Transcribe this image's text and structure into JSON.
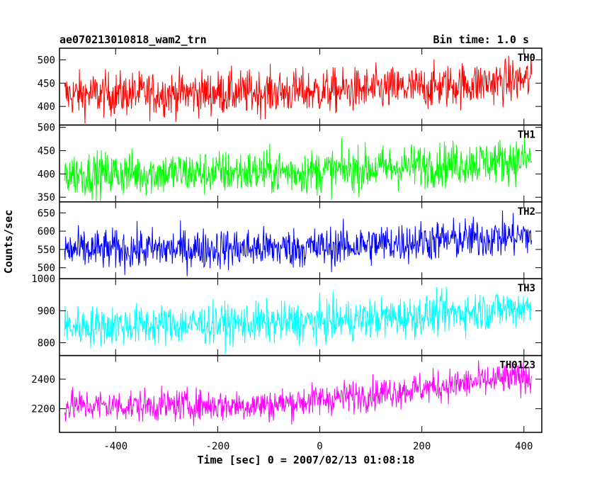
{
  "header": {
    "left": "ae070213010818_wam2_trn",
    "right": "Bin time: 1.0 s"
  },
  "chart_data": {
    "type": "line",
    "xlabel": "Time [sec] 0 = 2007/02/13 01:08:18",
    "ylabel": "Counts/sec",
    "xlim": [
      -510,
      435
    ],
    "x_ticks": [
      -400,
      -200,
      0,
      200,
      400
    ],
    "x_start": -500,
    "x_end": 415,
    "bin_time": 1.0,
    "panels": [
      {
        "name": "TH0",
        "color": "#ff0000",
        "ylim": [
          360,
          525
        ],
        "y_ticks": [
          400,
          450,
          500
        ],
        "trend": [
          [
            -500,
            425
          ],
          [
            0,
            432
          ],
          [
            200,
            440
          ],
          [
            415,
            458
          ]
        ],
        "noise": 24
      },
      {
        "name": "TH1",
        "color": "#00ff00",
        "ylim": [
          340,
          505
        ],
        "y_ticks": [
          350,
          400,
          450,
          500
        ],
        "trend": [
          [
            -500,
            400
          ],
          [
            0,
            405
          ],
          [
            200,
            418
          ],
          [
            415,
            432
          ]
        ],
        "noise": 24
      },
      {
        "name": "TH2",
        "color": "#0000ff",
        "ylim": [
          470,
          680
        ],
        "y_ticks": [
          500,
          550,
          600,
          650
        ],
        "trend": [
          [
            -500,
            548
          ],
          [
            0,
            555
          ],
          [
            200,
            572
          ],
          [
            415,
            588
          ]
        ],
        "noise": 28
      },
      {
        "name": "TH3",
        "color": "#00ffff",
        "ylim": [
          760,
          1000
        ],
        "y_ticks": [
          800,
          900,
          1000
        ],
        "trend": [
          [
            -500,
            850
          ],
          [
            0,
            865
          ],
          [
            200,
            885
          ],
          [
            415,
            912
          ]
        ],
        "noise": 32
      },
      {
        "name": "TH0123",
        "color": "#ff00ff",
        "ylim": [
          2040,
          2560
        ],
        "y_ticks": [
          2200,
          2400
        ],
        "trend": [
          [
            -500,
            2220
          ],
          [
            -100,
            2225
          ],
          [
            100,
            2300
          ],
          [
            415,
            2420
          ]
        ],
        "noise": 55
      }
    ]
  }
}
